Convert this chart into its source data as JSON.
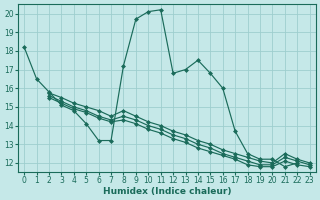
{
  "xlabel": "Humidex (Indice chaleur)",
  "xlim": [
    -0.5,
    23.5
  ],
  "ylim": [
    11.5,
    20.5
  ],
  "yticks": [
    12,
    13,
    14,
    15,
    16,
    17,
    18,
    19,
    20
  ],
  "xticks": [
    0,
    1,
    2,
    3,
    4,
    5,
    6,
    7,
    8,
    9,
    10,
    11,
    12,
    13,
    14,
    15,
    16,
    17,
    18,
    19,
    20,
    21,
    22,
    23
  ],
  "bg_color": "#c5e8e8",
  "grid_color": "#9ecece",
  "line_color": "#1a6b5a",
  "series": [
    {
      "x": [
        0,
        1,
        2,
        3,
        4,
        5,
        6,
        7,
        8,
        9,
        10,
        11,
        12,
        13,
        14,
        15,
        16,
        17,
        18,
        19,
        20,
        21,
        22
      ],
      "y": [
        18.2,
        16.5,
        15.8,
        15.1,
        14.8,
        14.1,
        13.2,
        13.2,
        17.2,
        19.7,
        20.1,
        20.2,
        16.8,
        17.0,
        17.5,
        16.8,
        16.0,
        13.7,
        12.5,
        12.2,
        12.2,
        11.8,
        12.0
      ]
    },
    {
      "x": [
        2,
        3,
        4,
        5,
        6,
        7,
        8,
        9,
        10,
        11,
        12,
        13,
        14,
        15,
        16,
        17,
        18,
        19,
        20,
        21,
        22,
        23
      ],
      "y": [
        15.75,
        15.5,
        15.2,
        15.0,
        14.8,
        14.5,
        14.8,
        14.5,
        14.2,
        14.0,
        13.7,
        13.5,
        13.2,
        13.0,
        12.7,
        12.5,
        12.3,
        12.1,
        12.0,
        12.5,
        12.2,
        12.0
      ]
    },
    {
      "x": [
        2,
        3,
        4,
        5,
        6,
        7,
        8,
        9,
        10,
        11,
        12,
        13,
        14,
        15,
        16,
        17,
        18,
        19,
        20,
        21,
        22,
        23
      ],
      "y": [
        15.6,
        15.3,
        15.0,
        14.8,
        14.5,
        14.3,
        14.5,
        14.3,
        14.0,
        13.8,
        13.5,
        13.3,
        13.0,
        12.8,
        12.5,
        12.3,
        12.1,
        11.9,
        11.9,
        12.3,
        12.1,
        11.9
      ]
    },
    {
      "x": [
        2,
        3,
        4,
        5,
        6,
        7,
        8,
        9,
        10,
        11,
        12,
        13,
        14,
        15,
        16,
        17,
        18,
        19,
        20,
        21,
        22,
        23
      ],
      "y": [
        15.5,
        15.2,
        14.9,
        14.7,
        14.4,
        14.2,
        14.3,
        14.1,
        13.8,
        13.6,
        13.3,
        13.1,
        12.8,
        12.6,
        12.4,
        12.2,
        11.9,
        11.8,
        11.8,
        12.1,
        11.9,
        11.8
      ]
    }
  ],
  "marker": "D",
  "markersize": 2.0,
  "linewidth": 0.85
}
